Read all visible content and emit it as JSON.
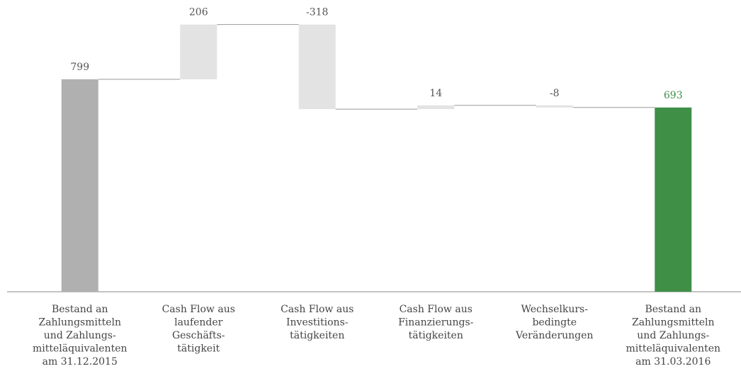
{
  "chart_data": {
    "type": "waterfall",
    "categories": [
      [
        "Bestand an",
        "Zahlungsmitteln",
        "und Zahlungs-",
        "mitteläquivalenten",
        "am 31.12.2015"
      ],
      [
        "Cash Flow aus",
        "laufender",
        "Geschäfts-",
        "tätigkeit"
      ],
      [
        "Cash Flow aus",
        "Investitions-",
        "tätigkeiten"
      ],
      [
        "Cash Flow aus",
        "Finanzierungs-",
        "tätigkeiten"
      ],
      [
        "Wechselkurs-",
        "bedingte",
        "Veränderungen"
      ],
      [
        "Bestand an",
        "Zahlungsmitteln",
        "und Zahlungs-",
        "mitteläquivalenten",
        "am 31.03.2016"
      ]
    ],
    "values": [
      799,
      206,
      -318,
      14,
      -8,
      693
    ],
    "measure": [
      "absolute",
      "relative",
      "relative",
      "relative",
      "relative",
      "absolute"
    ],
    "colors": [
      "#b0b0b0",
      "#e3e3e3",
      "#e3e3e3",
      "#e3e3e3",
      "#e3e3e3",
      "#3f8f47"
    ],
    "label_colors": [
      "#555555",
      "#555555",
      "#555555",
      "#555555",
      "#555555",
      "#3f8f47"
    ],
    "ylim": [
      0,
      1100
    ]
  }
}
